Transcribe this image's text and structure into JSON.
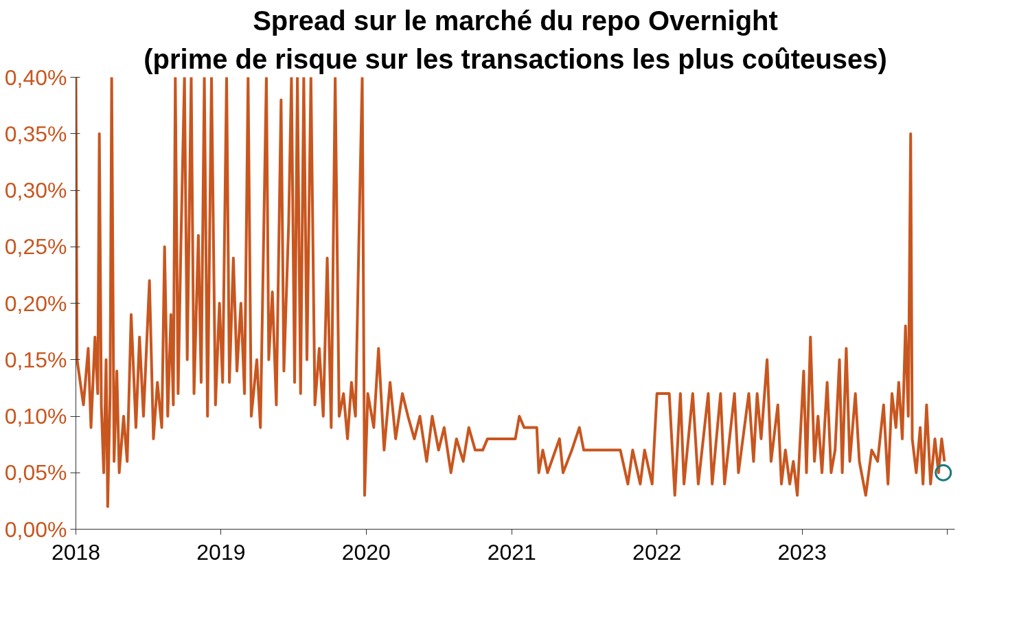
{
  "chart_data": {
    "type": "line",
    "title": "Spread sur le marché du repo Overnight",
    "subtitle": "(prime de risque sur les transactions les plus coûteuses)",
    "xlim": [
      "2018-01-01",
      "2024-01-20"
    ],
    "xticks": [
      {
        "value": "2018-01-01",
        "label": "2018"
      },
      {
        "value": "2019-01-01",
        "label": "2019"
      },
      {
        "value": "2020-01-01",
        "label": "2020"
      },
      {
        "value": "2021-01-01",
        "label": "2021"
      },
      {
        "value": "2022-01-01",
        "label": "2022"
      },
      {
        "value": "2023-01-01",
        "label": "2023"
      },
      {
        "value": "2024-01-01",
        "label": null
      }
    ],
    "ylim": [
      0,
      0.4
    ],
    "yticks": [
      {
        "value": 0,
        "label": "0,00%"
      },
      {
        "value": 0.05,
        "label": "0,05%"
      },
      {
        "value": 0.1,
        "label": "0,10%"
      },
      {
        "value": 0.15,
        "label": "0,15%"
      },
      {
        "value": 0.2,
        "label": "0,20%"
      },
      {
        "value": 0.25,
        "label": "0,25%"
      },
      {
        "value": 0.3,
        "label": "0,30%"
      },
      {
        "value": 0.35,
        "label": "0,35%"
      },
      {
        "value": 0.4,
        "label": "0,40%"
      }
    ],
    "grid": false,
    "line_style": "solid",
    "series": [
      {
        "color": "#c8561f",
        "x": [
          "2018-01-01",
          "2018-01-04",
          "2018-01-20",
          "2018-02-01",
          "2018-02-08",
          "2018-02-18",
          "2018-02-25",
          "2018-03-01",
          "2018-03-06",
          "2018-03-12",
          "2018-03-18",
          "2018-03-22",
          "2018-03-28",
          "2018-04-01",
          "2018-04-07",
          "2018-04-14",
          "2018-04-20",
          "2018-05-01",
          "2018-05-10",
          "2018-05-20",
          "2018-06-01",
          "2018-06-10",
          "2018-06-20",
          "2018-07-05",
          "2018-07-15",
          "2018-07-25",
          "2018-08-05",
          "2018-08-12",
          "2018-08-20",
          "2018-08-28",
          "2018-09-03",
          "2018-09-08",
          "2018-09-15",
          "2018-09-22",
          "2018-10-01",
          "2018-10-08",
          "2018-10-18",
          "2018-10-25",
          "2018-11-05",
          "2018-11-12",
          "2018-11-20",
          "2018-11-28",
          "2018-12-08",
          "2018-12-18",
          "2018-12-28",
          "2019-01-05",
          "2019-01-15",
          "2019-01-22",
          "2019-02-01",
          "2019-02-10",
          "2019-02-20",
          "2019-03-01",
          "2019-03-10",
          "2019-03-18",
          "2019-04-01",
          "2019-04-10",
          "2019-04-25",
          "2019-05-01",
          "2019-05-10",
          "2019-05-20",
          "2019-06-01",
          "2019-06-08",
          "2019-06-20",
          "2019-06-27",
          "2019-07-05",
          "2019-07-12",
          "2019-07-20",
          "2019-07-28",
          "2019-08-05",
          "2019-08-15",
          "2019-08-25",
          "2019-09-05",
          "2019-09-15",
          "2019-09-25",
          "2019-10-05",
          "2019-10-15",
          "2019-10-25",
          "2019-11-05",
          "2019-11-15",
          "2019-11-25",
          "2019-12-05",
          "2019-12-15",
          "2019-12-22",
          "2019-12-28",
          "2020-01-05",
          "2020-01-20",
          "2020-02-01",
          "2020-02-15",
          "2020-03-01",
          "2020-03-15",
          "2020-04-01",
          "2020-04-15",
          "2020-05-01",
          "2020-05-15",
          "2020-06-01",
          "2020-06-15",
          "2020-07-01",
          "2020-07-15",
          "2020-08-01",
          "2020-08-15",
          "2020-09-01",
          "2020-09-15",
          "2020-10-01",
          "2020-10-20",
          "2020-11-01",
          "2020-12-01",
          "2021-01-10",
          "2021-01-20",
          "2021-02-01",
          "2021-03-05",
          "2021-03-10",
          "2021-03-20",
          "2021-04-01",
          "2021-05-01",
          "2021-05-10",
          "2021-06-01",
          "2021-06-20",
          "2021-07-01",
          "2021-09-01",
          "2021-10-01",
          "2021-10-20",
          "2021-11-01",
          "2021-11-20",
          "2021-12-01",
          "2021-12-20",
          "2022-01-01",
          "2022-02-01",
          "2022-02-15",
          "2022-03-01",
          "2022-03-10",
          "2022-04-01",
          "2022-04-15",
          "2022-05-10",
          "2022-05-20",
          "2022-06-10",
          "2022-06-20",
          "2022-07-15",
          "2022-07-25",
          "2022-08-20",
          "2022-09-01",
          "2022-09-10",
          "2022-09-20",
          "2022-10-05",
          "2022-10-15",
          "2022-11-01",
          "2022-11-10",
          "2022-11-20",
          "2022-12-01",
          "2022-12-10",
          "2022-12-20",
          "2023-01-05",
          "2023-01-12",
          "2023-01-22",
          "2023-02-01",
          "2023-02-10",
          "2023-02-20",
          "2023-03-05",
          "2023-03-15",
          "2023-03-25",
          "2023-04-05",
          "2023-04-12",
          "2023-04-22",
          "2023-05-01",
          "2023-05-15",
          "2023-05-25",
          "2023-06-10",
          "2023-06-25",
          "2023-07-10",
          "2023-07-25",
          "2023-08-05",
          "2023-08-15",
          "2023-08-25",
          "2023-09-01",
          "2023-09-10",
          "2023-09-18",
          "2023-09-25",
          "2023-10-01",
          "2023-10-05",
          "2023-10-15",
          "2023-10-25",
          "2023-11-01",
          "2023-11-10",
          "2023-11-20",
          "2023-12-01",
          "2023-12-10",
          "2023-12-18",
          "2023-12-25"
        ],
        "values": [
          0.4,
          0.15,
          0.11,
          0.16,
          0.09,
          0.17,
          0.12,
          0.35,
          0.11,
          0.05,
          0.15,
          0.02,
          0.12,
          0.4,
          0.06,
          0.14,
          0.05,
          0.1,
          0.06,
          0.19,
          0.09,
          0.17,
          0.1,
          0.22,
          0.08,
          0.13,
          0.09,
          0.25,
          0.1,
          0.19,
          0.11,
          0.4,
          0.12,
          0.25,
          0.4,
          0.15,
          0.4,
          0.12,
          0.26,
          0.13,
          0.4,
          0.1,
          0.4,
          0.11,
          0.2,
          0.13,
          0.4,
          0.13,
          0.24,
          0.14,
          0.2,
          0.12,
          0.4,
          0.1,
          0.15,
          0.09,
          0.4,
          0.15,
          0.21,
          0.11,
          0.38,
          0.14,
          0.27,
          0.4,
          0.13,
          0.4,
          0.12,
          0.4,
          0.15,
          0.4,
          0.11,
          0.16,
          0.1,
          0.24,
          0.09,
          0.4,
          0.1,
          0.12,
          0.08,
          0.13,
          0.1,
          0.28,
          0.4,
          0.03,
          0.12,
          0.09,
          0.16,
          0.07,
          0.13,
          0.08,
          0.12,
          0.1,
          0.08,
          0.1,
          0.06,
          0.1,
          0.07,
          0.09,
          0.05,
          0.08,
          0.06,
          0.09,
          0.07,
          0.07,
          0.08,
          0.08,
          0.08,
          0.1,
          0.09,
          0.09,
          0.05,
          0.07,
          0.05,
          0.08,
          0.05,
          0.07,
          0.09,
          0.07,
          0.07,
          0.07,
          0.04,
          0.07,
          0.04,
          0.07,
          0.04,
          0.12,
          0.12,
          0.03,
          0.12,
          0.04,
          0.12,
          0.04,
          0.12,
          0.04,
          0.12,
          0.04,
          0.12,
          0.05,
          0.12,
          0.06,
          0.12,
          0.08,
          0.15,
          0.06,
          0.11,
          0.04,
          0.07,
          0.04,
          0.06,
          0.03,
          0.14,
          0.05,
          0.17,
          0.06,
          0.1,
          0.05,
          0.13,
          0.05,
          0.07,
          0.15,
          0.05,
          0.16,
          0.06,
          0.12,
          0.06,
          0.03,
          0.07,
          0.06,
          0.11,
          0.04,
          0.12,
          0.09,
          0.13,
          0.08,
          0.18,
          0.1,
          0.35,
          0.08,
          0.05,
          0.09,
          0.04,
          0.11,
          0.04,
          0.08,
          0.05,
          0.08,
          0.06
        ]
      },
      {
        "type": "scatter",
        "marker": "circle",
        "color": "#1a7a80",
        "x": [
          "2023-12-22"
        ],
        "values": [
          0.05
        ]
      }
    ]
  }
}
